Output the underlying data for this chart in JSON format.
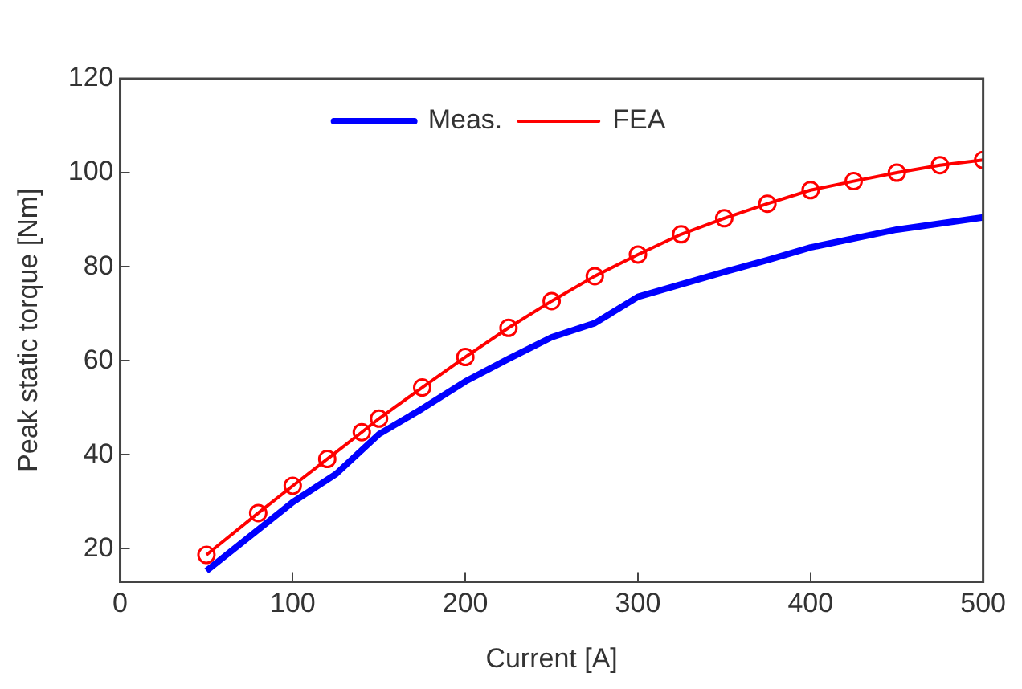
{
  "chart_data": {
    "type": "line",
    "xlabel": "Current [A]",
    "ylabel": "Peak static torque [Nm]",
    "xlim": [
      0,
      500
    ],
    "xticks": [
      0,
      100,
      200,
      300,
      400,
      500
    ],
    "ylim": [
      13,
      120
    ],
    "yticks": [
      20,
      40,
      60,
      80,
      100,
      120
    ],
    "grid": false,
    "legend": "top",
    "series": [
      {
        "name": "Meas.",
        "color": "#0000ff",
        "marker": "none",
        "x": [
          50,
          100,
          125,
          150,
          175,
          200,
          225,
          250,
          275,
          300,
          350,
          375,
          400,
          450,
          500
        ],
        "values": [
          15.3,
          29.9,
          35.9,
          44.4,
          49.8,
          55.6,
          60.4,
          65,
          68,
          73.6,
          78.9,
          81.4,
          84.1,
          87.9,
          90.5
        ]
      },
      {
        "name": "FEA",
        "color": "#ff0000",
        "marker": "circle",
        "x": [
          50,
          80,
          100,
          120,
          140,
          150,
          175,
          200,
          225,
          250,
          275,
          300,
          325,
          350,
          375,
          400,
          425,
          450,
          475,
          500
        ],
        "values": [
          18.7,
          27.6,
          33.4,
          39.1,
          44.8,
          47.7,
          54.3,
          60.8,
          67,
          72.7,
          78,
          82.6,
          86.9,
          90.3,
          93.4,
          96.3,
          98.2,
          100,
          101.6,
          102.7
        ]
      }
    ]
  }
}
